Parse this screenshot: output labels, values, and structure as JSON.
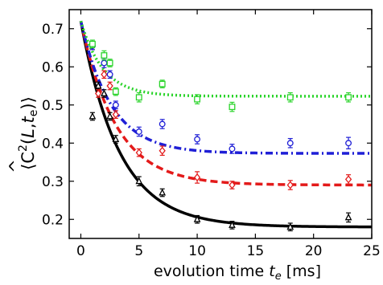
{
  "chart_data": {
    "type": "scatter",
    "xlabel": {
      "prefix": "evolution time ",
      "symbol": "t",
      "subscript": "e",
      "unit": " [ms]"
    },
    "ylabel": {
      "open": "⟨",
      "hat": "^",
      "main": "C",
      "sup": "2",
      "args_open": "(",
      "arg1": "L",
      "comma": ",",
      "arg2": "t",
      "arg2_sub": "e",
      "args_close": ")",
      "close": "⟩"
    },
    "xlim": [
      -1,
      25
    ],
    "ylim": [
      0.15,
      0.75
    ],
    "x_ticks": [
      0,
      5,
      10,
      15,
      20,
      25
    ],
    "y_ticks": [
      0.2,
      0.3,
      0.4,
      0.5,
      0.6,
      0.7
    ],
    "x_tick_labels": [
      "0",
      "5",
      "10",
      "15",
      "20",
      "25"
    ],
    "y_tick_labels": [
      "0.2",
      "0.3",
      "0.4",
      "0.5",
      "0.6",
      "0.7"
    ],
    "grid": false,
    "series": [
      {
        "color": "#000000",
        "marker": "triangle",
        "line_style": "solid",
        "fit": {
          "a": 0.18,
          "b": 0.54,
          "tau": 3.3
        },
        "points": [
          {
            "x": 1.0,
            "y": 0.47,
            "err": 0.01
          },
          {
            "x": 1.5,
            "y": 0.55,
            "err": 0.01
          },
          {
            "x": 2.0,
            "y": 0.53,
            "err": 0.01
          },
          {
            "x": 2.5,
            "y": 0.47,
            "err": 0.01
          },
          {
            "x": 3.0,
            "y": 0.41,
            "err": 0.01
          },
          {
            "x": 5.0,
            "y": 0.3,
            "err": 0.012
          },
          {
            "x": 7.0,
            "y": 0.27,
            "err": 0.01
          },
          {
            "x": 10.0,
            "y": 0.2,
            "err": 0.01
          },
          {
            "x": 13.0,
            "y": 0.185,
            "err": 0.01
          },
          {
            "x": 18.0,
            "y": 0.18,
            "err": 0.01
          },
          {
            "x": 23.0,
            "y": 0.205,
            "err": 0.012
          }
        ]
      },
      {
        "color": "#e31a1a",
        "marker": "diamond",
        "line_style": "dashed",
        "fit": {
          "a": 0.29,
          "b": 0.43,
          "tau": 3.0
        },
        "points": [
          {
            "x": 1.0,
            "y": 0.655,
            "err": 0.01
          },
          {
            "x": 1.5,
            "y": 0.53,
            "err": 0.01
          },
          {
            "x": 2.0,
            "y": 0.58,
            "err": 0.01
          },
          {
            "x": 2.5,
            "y": 0.55,
            "err": 0.01
          },
          {
            "x": 3.0,
            "y": 0.475,
            "err": 0.01
          },
          {
            "x": 5.0,
            "y": 0.375,
            "err": 0.01
          },
          {
            "x": 7.0,
            "y": 0.38,
            "err": 0.012
          },
          {
            "x": 10.0,
            "y": 0.31,
            "err": 0.015
          },
          {
            "x": 13.0,
            "y": 0.29,
            "err": 0.01
          },
          {
            "x": 18.0,
            "y": 0.29,
            "err": 0.012
          },
          {
            "x": 23.0,
            "y": 0.305,
            "err": 0.012
          }
        ]
      },
      {
        "color": "#1f1fd6",
        "marker": "circle",
        "line_style": "dashdot",
        "fit": {
          "a": 0.373,
          "b": 0.347,
          "tau": 2.6
        },
        "points": [
          {
            "x": 1.0,
            "y": 0.655,
            "err": 0.01
          },
          {
            "x": 2.0,
            "y": 0.61,
            "err": 0.012
          },
          {
            "x": 2.5,
            "y": 0.58,
            "err": 0.01
          },
          {
            "x": 3.0,
            "y": 0.5,
            "err": 0.01
          },
          {
            "x": 5.0,
            "y": 0.43,
            "err": 0.012
          },
          {
            "x": 7.0,
            "y": 0.45,
            "err": 0.012
          },
          {
            "x": 10.0,
            "y": 0.41,
            "err": 0.012
          },
          {
            "x": 13.0,
            "y": 0.385,
            "err": 0.012
          },
          {
            "x": 18.0,
            "y": 0.4,
            "err": 0.012
          },
          {
            "x": 23.0,
            "y": 0.4,
            "err": 0.015
          }
        ]
      },
      {
        "color": "#2bd42b",
        "marker": "square",
        "line_style": "dotted",
        "fit": {
          "a": 0.523,
          "b": 0.197,
          "tau": 1.9
        },
        "points": [
          {
            "x": 1.0,
            "y": 0.66,
            "err": 0.01
          },
          {
            "x": 2.0,
            "y": 0.63,
            "err": 0.012
          },
          {
            "x": 2.5,
            "y": 0.61,
            "err": 0.01
          },
          {
            "x": 3.0,
            "y": 0.535,
            "err": 0.01
          },
          {
            "x": 5.0,
            "y": 0.52,
            "err": 0.012
          },
          {
            "x": 7.0,
            "y": 0.555,
            "err": 0.01
          },
          {
            "x": 10.0,
            "y": 0.515,
            "err": 0.012
          },
          {
            "x": 13.0,
            "y": 0.495,
            "err": 0.012
          },
          {
            "x": 18.0,
            "y": 0.52,
            "err": 0.012
          },
          {
            "x": 23.0,
            "y": 0.52,
            "err": 0.012
          }
        ]
      }
    ]
  }
}
